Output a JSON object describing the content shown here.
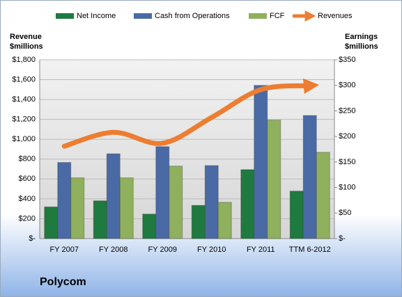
{
  "chart_data": {
    "type": "bar",
    "caption": "Polycom",
    "ylabel": [
      "Revenue",
      "$millions"
    ],
    "y2label": [
      "Earnings",
      "$millions"
    ],
    "categories": [
      "FY 2007",
      "FY 2008",
      "FY 2009",
      "FY 2010",
      "FY 2011",
      "TTM 6-2012"
    ],
    "series": [
      {
        "name": "Net Income",
        "color": "#1e7a3e",
        "axis": "y2",
        "values": [
          62,
          74,
          48,
          65,
          135,
          93
        ]
      },
      {
        "name": "Cash from Operations",
        "color": "#4a6aa5",
        "axis": "y2",
        "values": [
          149,
          166,
          180,
          143,
          300,
          241
        ]
      },
      {
        "name": "FCF",
        "color": "#8fb05c",
        "axis": "y2",
        "values": [
          119,
          119,
          142,
          71,
          232,
          169
        ]
      },
      {
        "name": "Revenues",
        "color": "#ed7d31",
        "type": "line",
        "axis": "y",
        "values": [
          930,
          1070,
          960,
          1220,
          1500,
          1540
        ]
      }
    ],
    "ylim": [
      0,
      1800
    ],
    "yticks": [
      {
        "value": 0,
        "label": "$-"
      },
      {
        "value": 200,
        "label": "$200"
      },
      {
        "value": 400,
        "label": "$400"
      },
      {
        "value": 600,
        "label": "$600"
      },
      {
        "value": 800,
        "label": "$800"
      },
      {
        "value": 1000,
        "label": "$1,000"
      },
      {
        "value": 1200,
        "label": "$1,200"
      },
      {
        "value": 1400,
        "label": "$1,400"
      },
      {
        "value": 1600,
        "label": "$1,600"
      },
      {
        "value": 1800,
        "label": "$1,800"
      }
    ],
    "y2lim": [
      0,
      350
    ],
    "y2ticks": [
      {
        "value": 0,
        "label": "$-"
      },
      {
        "value": 50,
        "label": "$50"
      },
      {
        "value": 100,
        "label": "$100"
      },
      {
        "value": 150,
        "label": "$150"
      },
      {
        "value": 200,
        "label": "$200"
      },
      {
        "value": 250,
        "label": "$250"
      },
      {
        "value": 300,
        "label": "$300"
      },
      {
        "value": 350,
        "label": "$350"
      }
    ],
    "grid": true,
    "legend": "top"
  }
}
